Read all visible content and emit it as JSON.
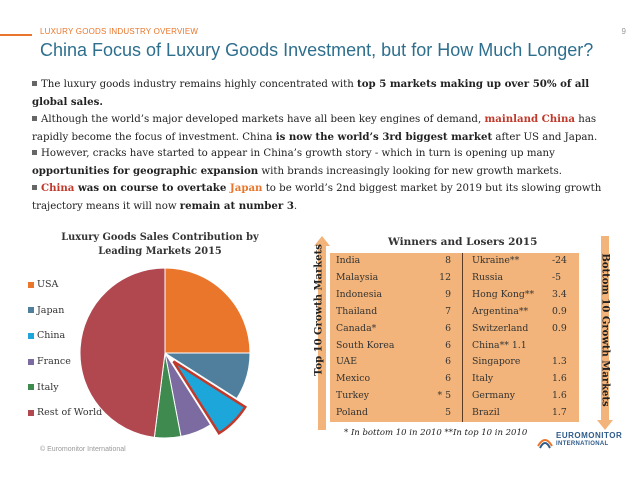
{
  "header": {
    "section_label": "LUXURY GOODS INDUSTRY OVERVIEW",
    "page_number": "9",
    "title": "China Focus of Luxury Goods Investment, but for How Much Longer?"
  },
  "bullets": [
    {
      "t1": "The luxury goods industry remains highly concentrated with ",
      "b1": "top 5 markets making up over 50% of all global sales."
    },
    {
      "t1": "Although the world’s major developed markets have all been key engines of demand, ",
      "b1": "mainland China",
      "t2": " has rapidly become the focus of investment. China  ",
      "b2": "is now the world’s 3rd biggest market",
      "t3": " after US and Japan."
    },
    {
      "t1": "However, cracks have started to appear in China’s growth story - which in turn is opening up many ",
      "b1": "opportunities for geographic expansion",
      "t2": " with brands increasingly looking for new growth markets."
    },
    {
      "r1": "China",
      "b1": " was on course to overtake ",
      "o1": "Japan",
      "t1": " to be world’s 2nd biggest market by 2019 but its slowing growth trajectory means it will now ",
      "b2": "remain at number 3",
      "t2": "."
    }
  ],
  "chart_data": {
    "type": "pie",
    "title": "Luxury Goods Sales Contribution by Leading Markets 2015",
    "labels": [
      "USA",
      "Japan",
      "China",
      "France",
      "Italy",
      "Rest of World"
    ],
    "values": [
      25,
      9,
      7,
      6,
      5,
      48
    ],
    "colors": [
      "#e9762b",
      "#4f7f9d",
      "#1da6d9",
      "#7b6ba1",
      "#3f8a4e",
      "#b1474f"
    ],
    "highlight": "China",
    "highlight_stroke": "#c0392b"
  },
  "winners_losers": {
    "title": "Winners and Losers 2015",
    "top_label": "Top 10 Growth Markets",
    "bottom_label": "Bottom 10 Growth Markets",
    "rows": [
      {
        "top": "India",
        "top_val": "8",
        "bottom": "Ukraine**",
        "bottom_val": "-24"
      },
      {
        "top": "Malaysia",
        "top_val": "12",
        "bottom": "Russia",
        "bottom_val": "-5"
      },
      {
        "top": "Indonesia",
        "top_val": "9",
        "bottom": "Hong Kong**",
        "bottom_val": "3.4"
      },
      {
        "top": "Thailand",
        "top_val": "7",
        "bottom": "Argentina**",
        "bottom_val": "0.9"
      },
      {
        "top": "Canada*",
        "top_val": "6",
        "bottom": "Switzerland",
        "bottom_val": "0.9"
      },
      {
        "top": "South Korea",
        "top_val": "6",
        "bottom": "China** 1.1",
        "bottom_val": ""
      },
      {
        "top": "UAE",
        "top_val": "6",
        "bottom": "Singapore",
        "bottom_val": "1.3"
      },
      {
        "top": "Mexico",
        "top_val": "6",
        "bottom": "Italy",
        "bottom_val": "1.6"
      },
      {
        "top": "Turkey",
        "top_val": "* 5",
        "bottom": "Germany",
        "bottom_val": "1.6"
      },
      {
        "top": "Poland",
        "top_val": "5",
        "bottom": "Brazil",
        "bottom_val": "1.7"
      }
    ],
    "footnote": "* In bottom 10 in 2010   **In top 10 in 2010"
  },
  "footer": {
    "copyright": "© Euromonitor International",
    "logo_line1": "EUROMONITOR",
    "logo_line2": "INTERNATIONAL"
  },
  "colors": {
    "accent": "#e9762b",
    "title": "#2e6f8e",
    "table_bg": "#f2b47a"
  }
}
